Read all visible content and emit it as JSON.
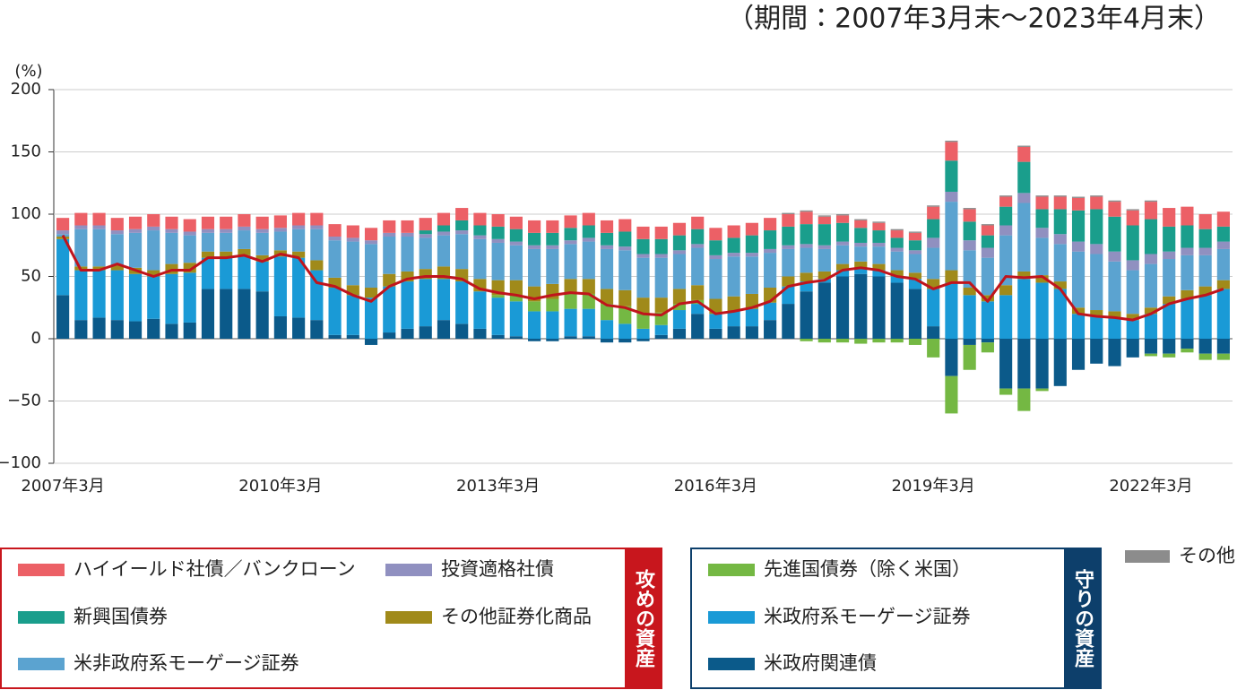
{
  "chart_data": {
    "type": "bar",
    "subtitle": "（期間：2007年3月末〜2023年4月末）",
    "y_label": "(%)",
    "ylim": [
      -100,
      200
    ],
    "yticks": [
      {
        "value": -100,
        "label": "−100"
      },
      {
        "value": -50,
        "label": "−50"
      },
      0,
      50,
      100,
      150,
      200
    ],
    "grid": true,
    "stacked": true,
    "categories": [
      "2007年3月",
      null,
      null,
      null,
      null,
      null,
      null,
      null,
      null,
      null,
      null,
      null,
      "2010年3月",
      null,
      null,
      null,
      null,
      null,
      null,
      null,
      null,
      null,
      null,
      null,
      "2013年3月",
      null,
      null,
      null,
      null,
      null,
      null,
      null,
      null,
      null,
      null,
      null,
      "2016年3月",
      null,
      null,
      null,
      null,
      null,
      null,
      null,
      null,
      null,
      null,
      null,
      "2019年3月",
      null,
      null,
      null,
      null,
      null,
      null,
      null,
      null,
      null,
      null,
      null,
      "2022年3月",
      null,
      null,
      null,
      null
    ],
    "legend_groups": [
      "攻めの資産",
      "守りの資産"
    ],
    "series": [
      {
        "name": "米政府関連債",
        "color": "#0b5a8a",
        "values": [
          35,
          15,
          17,
          15,
          14,
          16,
          12,
          13,
          40,
          40,
          40,
          38,
          18,
          17,
          15,
          3,
          3,
          -5,
          5,
          8,
          10,
          15,
          12,
          8,
          3,
          2,
          -2,
          -2,
          2,
          2,
          -3,
          -3,
          -2,
          3,
          8,
          20,
          8,
          10,
          10,
          15,
          28,
          38,
          45,
          50,
          52,
          50,
          45,
          40,
          10,
          -30,
          -5,
          -3,
          -40,
          -40,
          -40,
          -38,
          -25,
          -20,
          -22,
          -15,
          -12,
          -12,
          -8,
          -12,
          -12
        ]
      },
      {
        "name": "米政府系モーゲージ証券",
        "color": "#1a9ad6",
        "values": [
          45,
          40,
          38,
          40,
          38,
          34,
          40,
          40,
          25,
          25,
          27,
          24,
          48,
          48,
          40,
          38,
          32,
          33,
          37,
          38,
          38,
          33,
          34,
          30,
          30,
          28,
          22,
          22,
          22,
          22,
          15,
          12,
          8,
          8,
          15,
          8,
          12,
          12,
          14,
          14,
          14,
          8,
          3,
          5,
          5,
          5,
          5,
          8,
          30,
          45,
          35,
          30,
          35,
          48,
          45,
          40,
          20,
          18,
          17,
          15,
          20,
          28,
          32,
          35,
          40
        ]
      },
      {
        "name": "先進国債券（除く米国）",
        "color": "#74b843",
        "values": [
          0,
          0,
          0,
          0,
          0,
          0,
          0,
          0,
          0,
          0,
          0,
          0,
          0,
          0,
          0,
          0,
          0,
          0,
          0,
          0,
          0,
          0,
          0,
          0,
          2,
          5,
          8,
          10,
          12,
          12,
          13,
          14,
          12,
          10,
          5,
          3,
          0,
          0,
          0,
          0,
          0,
          -2,
          -3,
          -3,
          -4,
          -3,
          -3,
          -5,
          -15,
          -30,
          -20,
          -8,
          -5,
          -18,
          -2,
          0,
          0,
          0,
          0,
          0,
          -2,
          -3,
          -3,
          -5,
          -5
        ]
      },
      {
        "name": "その他証券化商品",
        "color": "#a08a1a",
        "values": [
          2,
          3,
          3,
          4,
          5,
          5,
          8,
          8,
          5,
          5,
          5,
          5,
          5,
          5,
          8,
          8,
          8,
          8,
          10,
          8,
          8,
          10,
          10,
          10,
          12,
          12,
          12,
          12,
          12,
          12,
          12,
          13,
          13,
          12,
          12,
          12,
          12,
          12,
          12,
          12,
          8,
          7,
          6,
          5,
          5,
          5,
          5,
          5,
          8,
          10,
          6,
          5,
          8,
          6,
          6,
          6,
          5,
          5,
          5,
          5,
          5,
          6,
          7,
          7,
          7
        ]
      },
      {
        "name": "米非政府系モーゲージ証券",
        "color": "#5ba3d0",
        "values": [
          2,
          30,
          30,
          25,
          28,
          32,
          25,
          22,
          15,
          15,
          15,
          18,
          15,
          18,
          25,
          30,
          35,
          35,
          30,
          28,
          25,
          25,
          28,
          32,
          30,
          28,
          30,
          28,
          28,
          30,
          32,
          32,
          32,
          32,
          28,
          30,
          32,
          32,
          30,
          28,
          22,
          20,
          18,
          15,
          12,
          14,
          15,
          15,
          25,
          55,
          30,
          30,
          40,
          55,
          30,
          30,
          45,
          45,
          40,
          35,
          35,
          30,
          28,
          25,
          25
        ]
      },
      {
        "name": "投資適格社債",
        "color": "#9090c0",
        "values": [
          3,
          3,
          3,
          3,
          3,
          3,
          3,
          3,
          3,
          3,
          3,
          3,
          3,
          3,
          3,
          3,
          3,
          3,
          3,
          3,
          3,
          3,
          3,
          3,
          3,
          3,
          3,
          3,
          3,
          3,
          3,
          3,
          3,
          3,
          3,
          3,
          3,
          3,
          3,
          3,
          3,
          3,
          3,
          3,
          3,
          3,
          3,
          3,
          8,
          8,
          8,
          8,
          8,
          8,
          8,
          8,
          8,
          8,
          8,
          8,
          8,
          6,
          6,
          6,
          6
        ]
      },
      {
        "name": "新興国債券",
        "color": "#1a9e8c",
        "values": [
          0,
          0,
          0,
          0,
          0,
          0,
          0,
          0,
          0,
          0,
          0,
          0,
          0,
          0,
          0,
          0,
          0,
          0,
          0,
          0,
          3,
          5,
          8,
          8,
          10,
          10,
          10,
          10,
          10,
          10,
          10,
          12,
          12,
          12,
          12,
          12,
          12,
          12,
          14,
          15,
          15,
          16,
          17,
          15,
          12,
          10,
          8,
          8,
          15,
          25,
          15,
          10,
          15,
          25,
          15,
          20,
          25,
          28,
          28,
          28,
          28,
          20,
          18,
          15,
          12
        ]
      },
      {
        "name": "ハイイールド社債／バンクローン",
        "color": "#ec6066",
        "values": [
          10,
          10,
          10,
          10,
          10,
          10,
          10,
          10,
          10,
          10,
          10,
          10,
          10,
          10,
          10,
          10,
          10,
          10,
          10,
          10,
          10,
          10,
          10,
          10,
          10,
          10,
          10,
          10,
          10,
          10,
          10,
          10,
          10,
          10,
          10,
          10,
          10,
          10,
          10,
          10,
          10,
          10,
          6,
          6,
          6,
          6,
          6,
          6,
          10,
          15,
          10,
          8,
          8,
          12,
          10,
          10,
          10,
          10,
          12,
          12,
          14,
          15,
          15,
          12,
          12
        ]
      },
      {
        "name": "その他",
        "color": "#8c8c8c",
        "values": [
          0,
          0,
          0,
          0,
          0,
          0,
          0,
          0,
          0,
          0,
          0,
          0,
          0,
          0,
          0,
          0,
          0,
          0,
          0,
          0,
          0,
          0,
          0,
          0,
          0,
          0,
          0,
          0,
          0,
          0,
          0,
          0,
          0,
          0,
          0,
          0,
          0,
          0,
          0,
          0,
          1,
          1,
          1,
          1,
          1,
          1,
          1,
          1,
          1,
          1,
          1,
          1,
          1,
          1,
          1,
          1,
          1,
          1,
          1,
          1,
          1,
          0,
          0,
          0,
          0
        ]
      },
      {
        "type": "line",
        "color": "#c0141c",
        "values": [
          83,
          55,
          55,
          60,
          55,
          50,
          55,
          55,
          65,
          65,
          67,
          62,
          68,
          65,
          45,
          42,
          35,
          30,
          42,
          48,
          50,
          50,
          48,
          40,
          37,
          35,
          32,
          35,
          37,
          36,
          27,
          25,
          20,
          19,
          28,
          30,
          20,
          22,
          25,
          30,
          42,
          45,
          47,
          55,
          57,
          55,
          50,
          48,
          40,
          45,
          45,
          30,
          50,
          49,
          50,
          40,
          20,
          18,
          17,
          15,
          20,
          28,
          32,
          35,
          40
        ]
      }
    ]
  }
}
